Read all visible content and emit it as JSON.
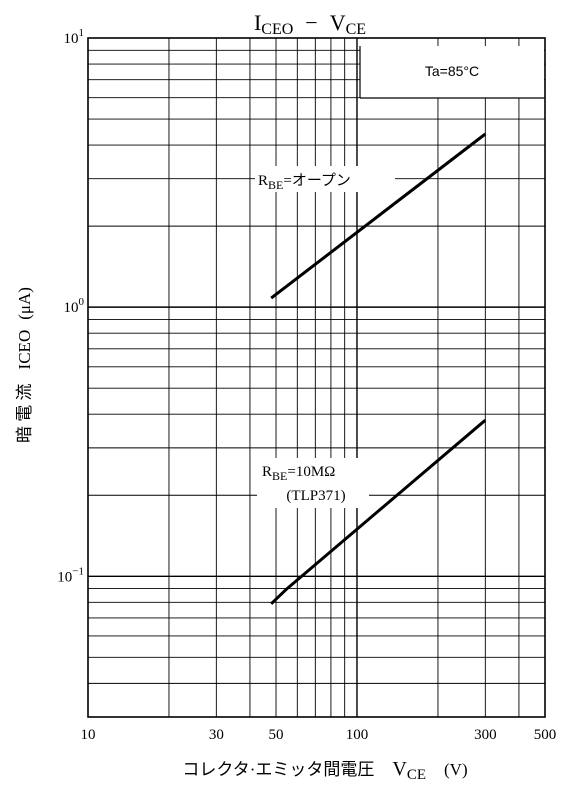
{
  "chart_data": {
    "type": "line",
    "title": "ICEO − VCE",
    "title_parts": {
      "main_i": "I",
      "main_sub": "CEO",
      "dash": "−",
      "main_v": "V",
      "v_sub": "CE"
    },
    "condition": "Ta=85°C",
    "x_axis": {
      "label_jp": "コレクタ·エミッタ間電圧",
      "label_sym": "V",
      "label_sub": "CE",
      "label_unit": "(V)",
      "scale": "log",
      "range": [
        10,
        500
      ],
      "ticks": [
        10,
        30,
        50,
        100,
        300,
        500
      ],
      "tick_labels": [
        "10",
        "30",
        "50",
        "100",
        "300",
        "500"
      ]
    },
    "y_axis": {
      "label_jp": "暗 電 流",
      "label_sym": "ICEO",
      "label_unit": "(μA)",
      "scale": "log",
      "range": [
        0.03,
        10
      ],
      "ticks": [
        {
          "value": 10,
          "base": "10",
          "exp": "1"
        },
        {
          "value": 1,
          "base": "10",
          "exp": "0"
        },
        {
          "value": 0.1,
          "base": "10",
          "exp": "−1"
        }
      ]
    },
    "grid": true,
    "series": [
      {
        "name": "RBE=オープン",
        "name_parts": {
          "r": "R",
          "sub": "BE",
          "rest": "=オープン"
        },
        "x": [
          48,
          300
        ],
        "y": [
          1.08,
          4.4
        ]
      },
      {
        "name": "RBE=10MΩ (TLP371)",
        "name_parts": {
          "r": "R",
          "sub": "BE",
          "rest": "=10MΩ",
          "line2": "(TLP371)"
        },
        "x": [
          48,
          55,
          300
        ],
        "y": [
          0.079,
          0.09,
          0.38
        ]
      }
    ]
  }
}
